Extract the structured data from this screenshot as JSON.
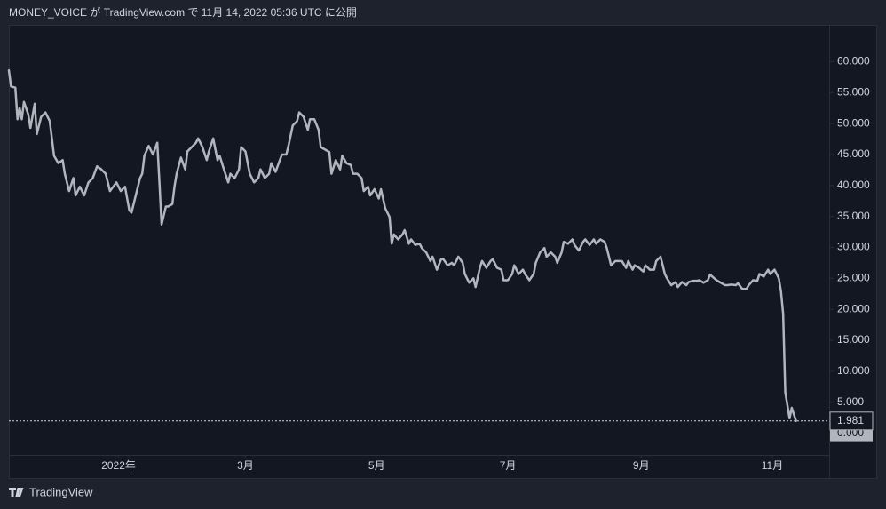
{
  "chart_data": {
    "type": "line",
    "header": "MONEY_VOICE が TradingView.com で 11月 14, 2022 05:36 UTC に公開",
    "footer": "TradingView",
    "color": "#b2b5be",
    "xlim": [
      0,
      381
    ],
    "xticks": [
      {
        "value": 51,
        "label": "2022年"
      },
      {
        "value": 110,
        "label": "3月"
      },
      {
        "value": 171,
        "label": "5月"
      },
      {
        "value": 232,
        "label": "7月"
      },
      {
        "value": 294,
        "label": "9月"
      },
      {
        "value": 355,
        "label": "11月"
      }
    ],
    "ylim": [
      -3.5,
      65.8
    ],
    "yticks": [
      {
        "value": 0,
        "label": "0.000"
      },
      {
        "value": 5,
        "label": "5.000"
      },
      {
        "value": 10,
        "label": "10.000"
      },
      {
        "value": 15,
        "label": "15.000"
      },
      {
        "value": 20,
        "label": "20.000"
      },
      {
        "value": 25,
        "label": "25.000"
      },
      {
        "value": 30,
        "label": "30.000"
      },
      {
        "value": 35,
        "label": "35.000"
      },
      {
        "value": 40,
        "label": "40.000"
      },
      {
        "value": 45,
        "label": "45.000"
      },
      {
        "value": 50,
        "label": "50.000"
      },
      {
        "value": 55,
        "label": "55.000"
      },
      {
        "value": 60,
        "label": "60.000"
      }
    ],
    "x": [
      0,
      1,
      3,
      4,
      5,
      6,
      7,
      9,
      10,
      12,
      13,
      15,
      17,
      19,
      21,
      23,
      25,
      26,
      28,
      30,
      31,
      33,
      35,
      37,
      39,
      41,
      43,
      45,
      47,
      50,
      52,
      54,
      56,
      57,
      59,
      61,
      62,
      63,
      65,
      67,
      69,
      70,
      71,
      73,
      74,
      76,
      77,
      78,
      80,
      82,
      83,
      85,
      87,
      88,
      90,
      92,
      93,
      95,
      97,
      98,
      100,
      102,
      103,
      105,
      107,
      108,
      110,
      112,
      114,
      116,
      117,
      119,
      121,
      122,
      124,
      126,
      127,
      129,
      130,
      132,
      134,
      135,
      137,
      139,
      140,
      142,
      144,
      145,
      147,
      149,
      150,
      152,
      154,
      155,
      157,
      159,
      160,
      162,
      164,
      165,
      167,
      168,
      170,
      172,
      173,
      175,
      177,
      178,
      179,
      181,
      183,
      184,
      186,
      187,
      189,
      191,
      192,
      194,
      196,
      197,
      199,
      201,
      202,
      204,
      206,
      207,
      209,
      211,
      212,
      214,
      216,
      217,
      219,
      220,
      222,
      224,
      225,
      227,
      229,
      230,
      232,
      234,
      235,
      237,
      239,
      240,
      242,
      244,
      245,
      247,
      249,
      250,
      252,
      254,
      255,
      257,
      258,
      260,
      262,
      263,
      265,
      267,
      268,
      270,
      272,
      273,
      275,
      277,
      278,
      280,
      282,
      283,
      285,
      287,
      288,
      290,
      291,
      293,
      295,
      296,
      298,
      300,
      301,
      303,
      305,
      306,
      308,
      310,
      311,
      313,
      315,
      316,
      318,
      320,
      321,
      323,
      325,
      326,
      328,
      329,
      331,
      333,
      334,
      336,
      338,
      339,
      341,
      343,
      344,
      346,
      348,
      349,
      351,
      353,
      354,
      356,
      358,
      359,
      360,
      361,
      362,
      363,
      364,
      366
    ],
    "values": [
      58.6,
      56,
      55.8,
      50.7,
      52.5,
      50.7,
      53.5,
      51.5,
      49.3,
      53.2,
      48.3,
      51.1,
      51.8,
      50.4,
      44.8,
      43.6,
      44.1,
      41.9,
      39.1,
      41.2,
      38.4,
      39.8,
      38.4,
      40.5,
      41.2,
      43.1,
      42.6,
      41.9,
      39.1,
      40.5,
      39.1,
      39.8,
      36,
      35.6,
      38.4,
      41.2,
      41.9,
      44.8,
      46.4,
      45,
      46.9,
      40.5,
      33.7,
      36.6,
      36.6,
      37,
      39.8,
      41.9,
      44.5,
      42.6,
      45.5,
      46.2,
      46.9,
      47.6,
      46.2,
      44.1,
      45.5,
      47.6,
      44.1,
      44.8,
      42.6,
      40.5,
      41.9,
      41.2,
      42.6,
      46.2,
      45.5,
      41.9,
      40.5,
      41.2,
      42.6,
      41.2,
      41.9,
      43.6,
      42.2,
      44.1,
      45,
      45,
      46.4,
      49.7,
      50.4,
      51.8,
      51.1,
      49,
      50.7,
      50.7,
      49,
      46.2,
      45.8,
      45.4,
      41.9,
      44.1,
      42.6,
      44.8,
      43.6,
      43.3,
      41.9,
      41.9,
      41.2,
      39.1,
      39.8,
      38.4,
      39.4,
      37.9,
      39.4,
      36.3,
      34.9,
      30.6,
      32.1,
      31.3,
      32.1,
      32.8,
      30.6,
      31.3,
      30.4,
      30.6,
      29.9,
      29.2,
      27.8,
      28.5,
      26.4,
      28.1,
      28.1,
      27.1,
      27.5,
      27.1,
      28.5,
      27.5,
      25.7,
      24.3,
      25,
      23.6,
      26.7,
      27.8,
      26.7,
      27.8,
      28.1,
      26.7,
      26.4,
      24.7,
      24.7,
      25.7,
      27.1,
      25.7,
      26.4,
      25.7,
      24.7,
      25.7,
      27.5,
      29.2,
      29.9,
      28.5,
      29.2,
      28.5,
      27.5,
      29.2,
      30.9,
      30.6,
      31.3,
      30.4,
      29.5,
      30.9,
      31.3,
      30.4,
      31.3,
      30.6,
      31.3,
      30.9,
      29.9,
      27.1,
      27.8,
      27.8,
      27.8,
      26.7,
      27.8,
      26.4,
      27.1,
      26.7,
      26.1,
      27.1,
      26.4,
      26.4,
      27.8,
      28.5,
      25.7,
      25,
      23.9,
      24.4,
      23.6,
      24.4,
      23.9,
      24.4,
      24.6,
      24.6,
      24.7,
      24.3,
      24.7,
      25.6,
      25,
      24.7,
      24.3,
      23.9,
      23.9,
      24,
      23.9,
      24.2,
      23.3,
      23.3,
      23.9,
      24.7,
      24.6,
      25.7,
      25.3,
      26.4,
      25.7,
      26.4,
      25,
      22.9,
      19.3,
      6.6,
      4.5,
      2.4,
      4.1,
      1.981
    ]
  }
}
